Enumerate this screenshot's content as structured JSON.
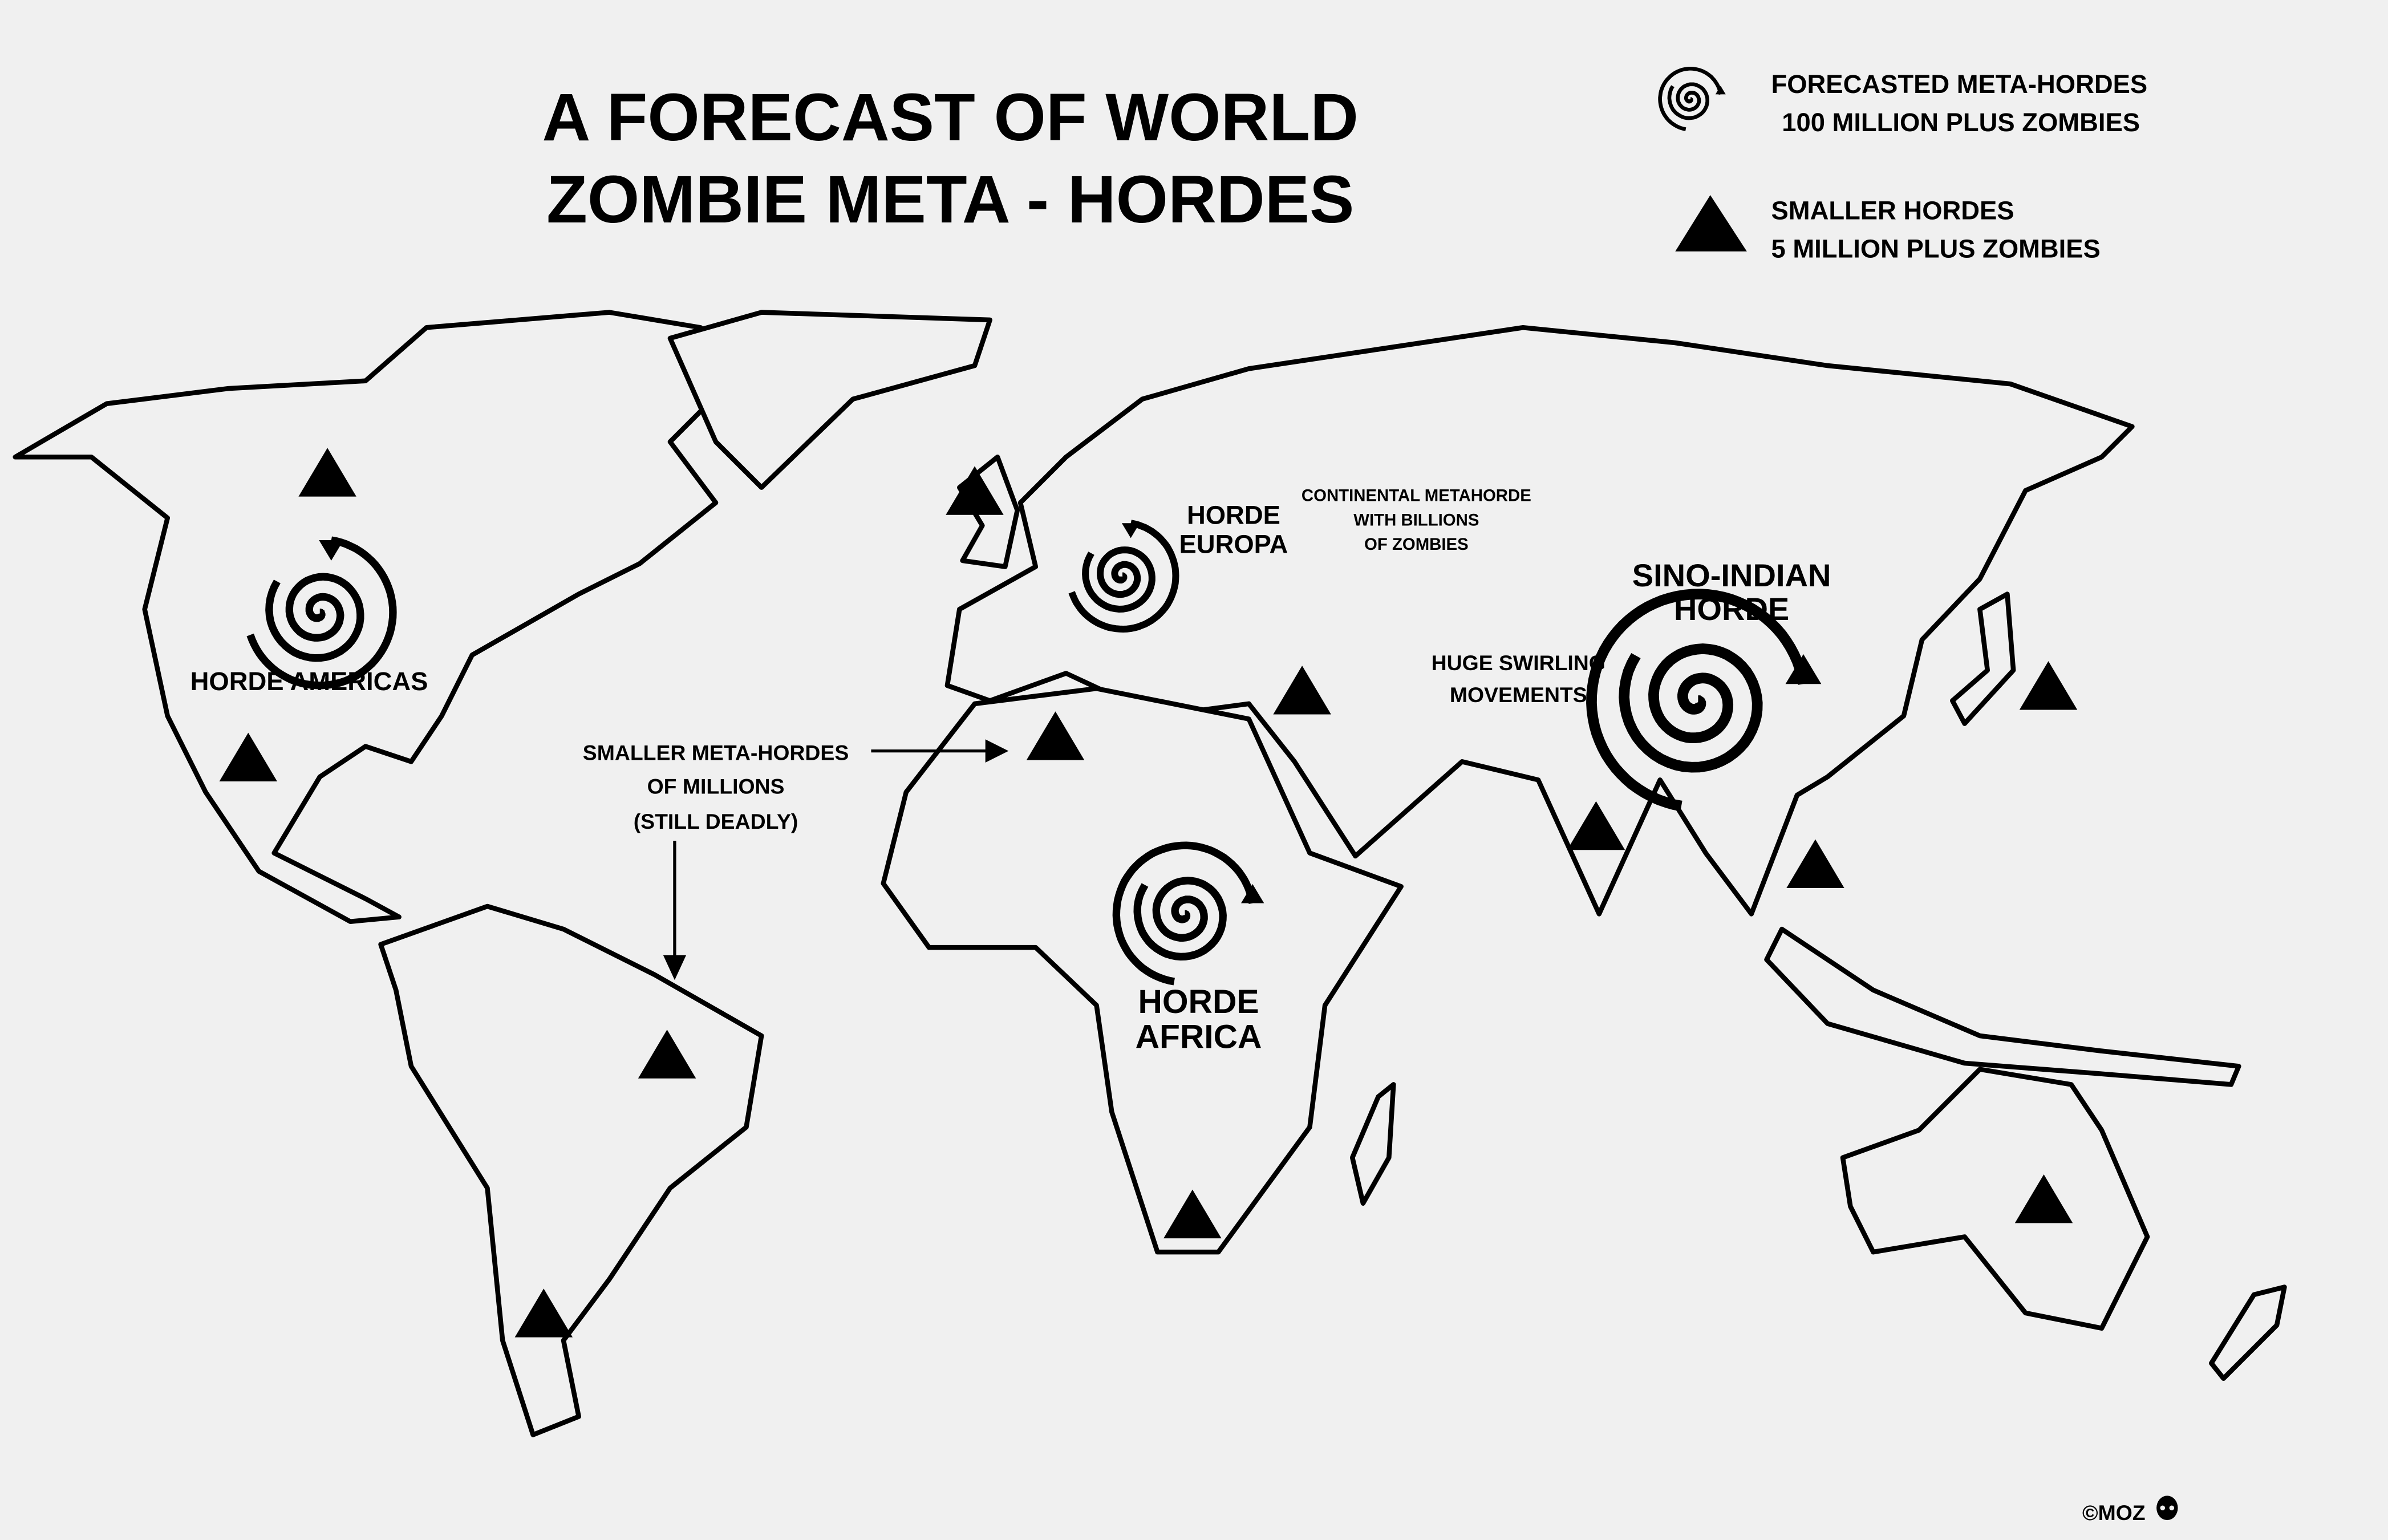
{
  "title": {
    "line1": "A FORECAST OF WORLD",
    "line2": "ZOMBIE META - HORDES"
  },
  "legend": {
    "meta_hordes": {
      "icon": "spiral-arrow-icon",
      "line1": "FORECASTED META-HORDES",
      "line2": "100 MILLION PLUS ZOMBIES"
    },
    "smaller_hordes": {
      "icon": "triangle-icon",
      "line1": "SMALLER HORDES",
      "line2": "5 MILLION PLUS ZOMBIES"
    }
  },
  "labels": {
    "americas": "HORDE AMERICAS",
    "europa": {
      "line1": "HORDE",
      "line2": "EUROPA"
    },
    "continental": {
      "line1": "CONTINENTAL METAHORDE",
      "line2": "WITH BILLIONS",
      "line3": "OF ZOMBIES"
    },
    "sino_indian": {
      "line1": "SINO-INDIAN",
      "line2": "HORDE"
    },
    "swirling": {
      "line1": "HUGE SWIRLING",
      "line2": "MOVEMENTS"
    },
    "smaller_meta": {
      "line1": "SMALLER META-HORDES",
      "line2": "OF MILLIONS",
      "line3": "(STILL DEADLY)"
    },
    "africa": {
      "line1": "HORDE",
      "line2": "AFRICA"
    }
  },
  "credit": "©MOZ",
  "colors": {
    "background": "#f0f0f0",
    "ink": "#000000"
  }
}
